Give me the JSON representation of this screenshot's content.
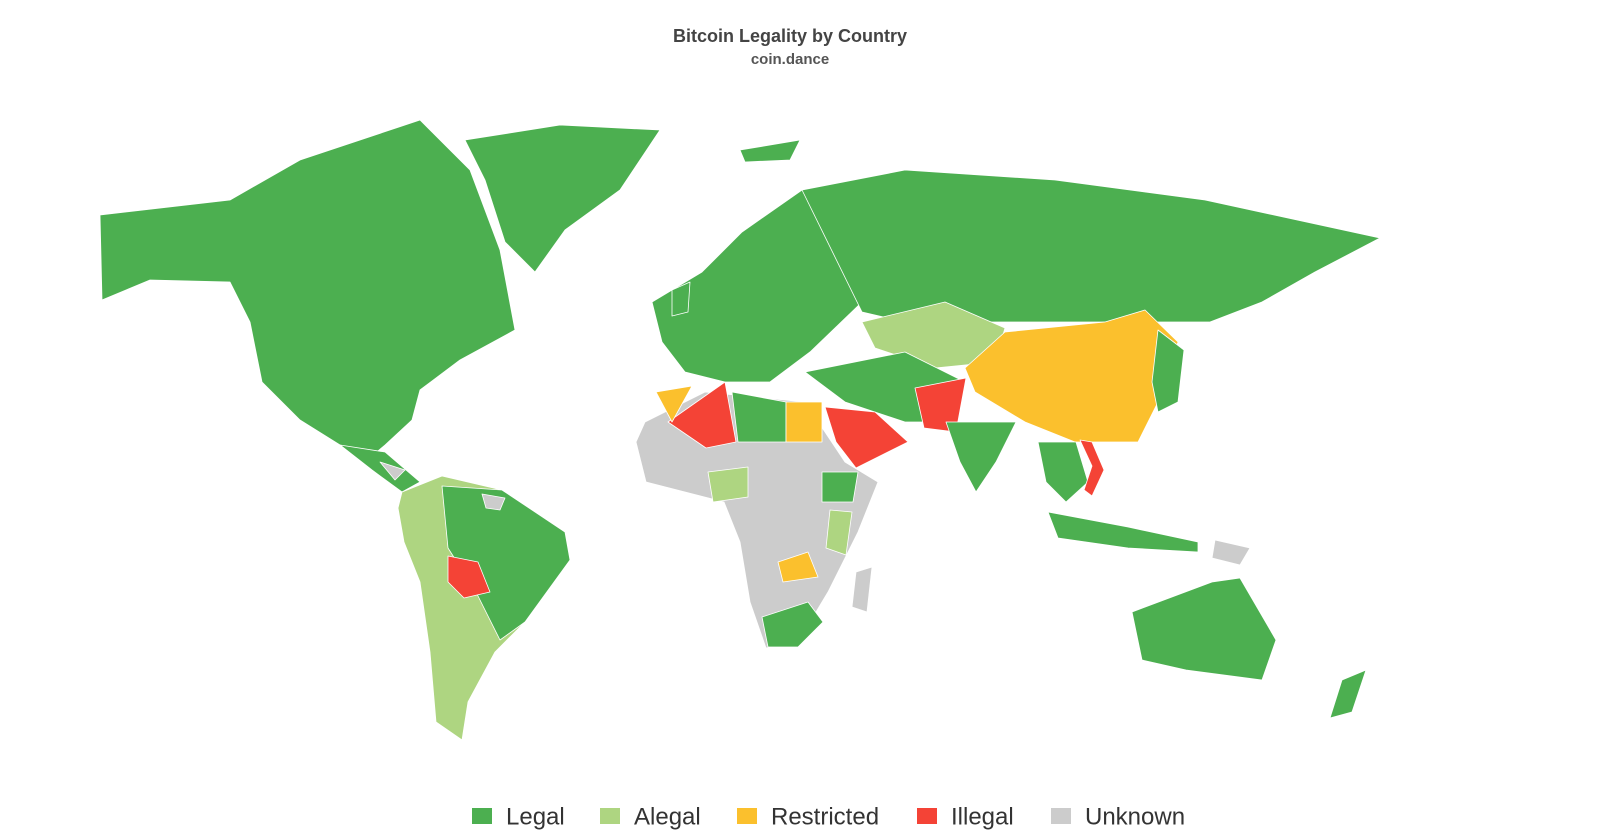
{
  "title": "Bitcoin Legality by Country",
  "subtitle": "coin.dance",
  "legend": {
    "items": [
      {
        "name": "Legal",
        "color": "#4caf50"
      },
      {
        "name": "Alegal",
        "color": "#aed581"
      },
      {
        "name": "Restricted",
        "color": "#fbc02d"
      },
      {
        "name": "Illegal",
        "color": "#f44336"
      },
      {
        "name": "Unknown",
        "color": "#cccccc"
      }
    ]
  }
}
